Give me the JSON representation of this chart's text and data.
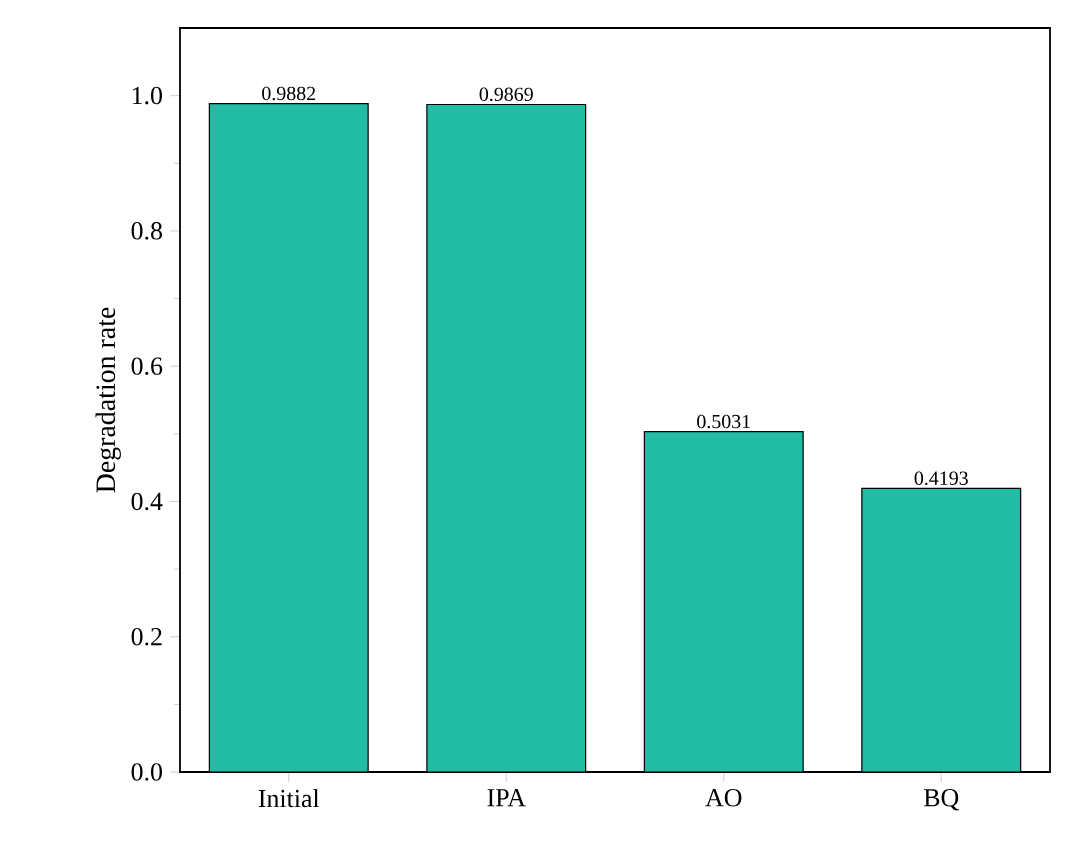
{
  "chart_data": {
    "type": "bar",
    "ylabel": "Degradation rate",
    "categories": [
      "Initial",
      "IPA",
      "AO",
      "BQ"
    ],
    "values": [
      0.9882,
      0.9869,
      0.5031,
      0.4193
    ],
    "color": "#22bca4",
    "data_labels": true,
    "ylim": [
      0,
      1.1
    ],
    "yticks": [
      {
        "value": 0,
        "label": "0.0"
      },
      {
        "value": 0.2,
        "label": "0.2"
      },
      {
        "value": 0.4,
        "label": "0.4"
      },
      {
        "value": 0.6,
        "label": "0.6"
      },
      {
        "value": 0.8,
        "label": "0.8"
      },
      {
        "value": 1.0,
        "label": "1.0"
      }
    ]
  }
}
